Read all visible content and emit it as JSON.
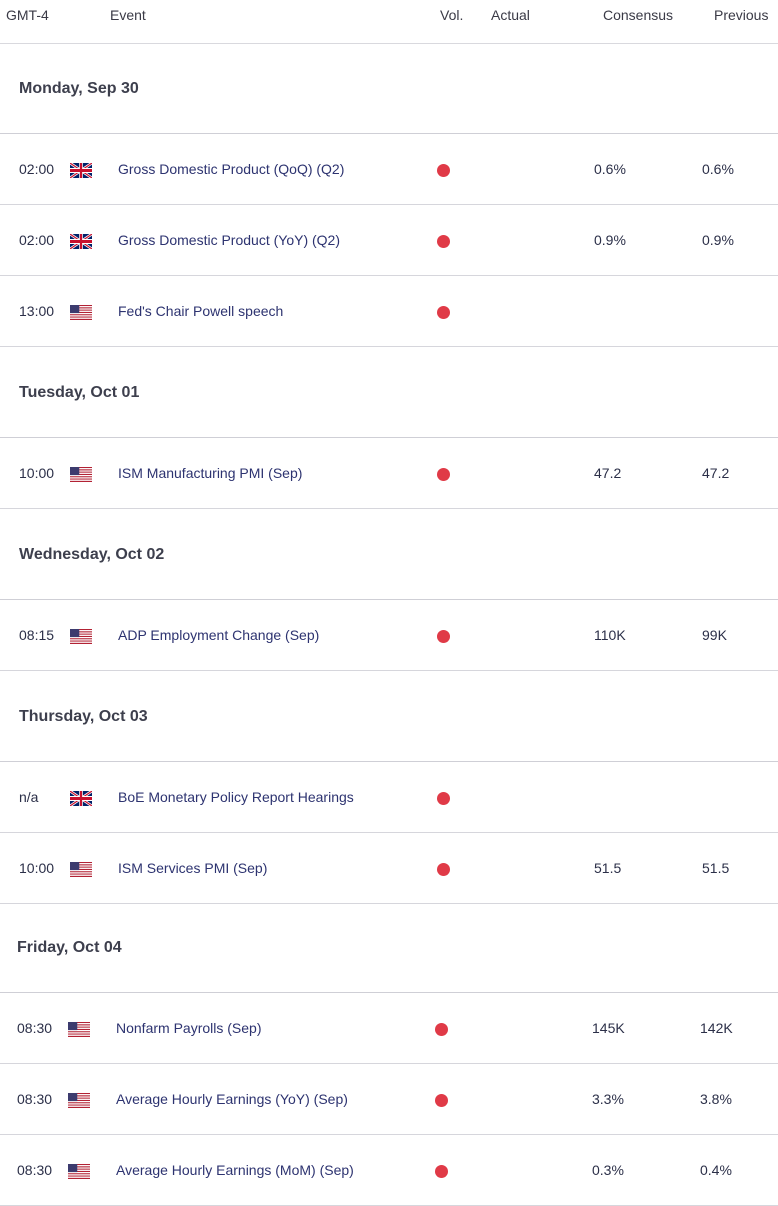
{
  "header": {
    "timezone": "GMT-4",
    "event": "Event",
    "vol": "Vol.",
    "actual": "Actual",
    "consensus": "Consensus",
    "previous": "Previous"
  },
  "colors": {
    "volatility_dot": "#e03a47",
    "event_text": "#2d3370"
  },
  "days": [
    {
      "label": "Monday, Sep 30",
      "events": [
        {
          "time": "02:00",
          "flag": "uk-flag-icon",
          "name": "Gross Domestic Product (QoQ) (Q2)",
          "actual": "",
          "consensus": "0.6%",
          "previous": "0.6%"
        },
        {
          "time": "02:00",
          "flag": "uk-flag-icon",
          "name": "Gross Domestic Product (YoY) (Q2)",
          "actual": "",
          "consensus": "0.9%",
          "previous": "0.9%"
        },
        {
          "time": "13:00",
          "flag": "us-flag-icon",
          "name": "Fed's Chair Powell speech",
          "actual": "",
          "consensus": "",
          "previous": ""
        }
      ]
    },
    {
      "label": "Tuesday, Oct 01",
      "events": [
        {
          "time": "10:00",
          "flag": "us-flag-icon",
          "name": "ISM Manufacturing PMI (Sep)",
          "actual": "",
          "consensus": "47.2",
          "previous": "47.2"
        }
      ]
    },
    {
      "label": "Wednesday, Oct 02",
      "events": [
        {
          "time": "08:15",
          "flag": "us-flag-icon",
          "name": "ADP Employment Change (Sep)",
          "actual": "",
          "consensus": "110K",
          "previous": "99K"
        }
      ]
    },
    {
      "label": "Thursday, Oct 03",
      "events": [
        {
          "time": "n/a",
          "flag": "uk-flag-icon",
          "name": "BoE Monetary Policy Report Hearings",
          "actual": "",
          "consensus": "",
          "previous": ""
        },
        {
          "time": "10:00",
          "flag": "us-flag-icon",
          "name": "ISM Services PMI (Sep)",
          "actual": "",
          "consensus": "51.5",
          "previous": "51.5"
        }
      ]
    },
    {
      "label": "Friday, Oct 04",
      "events": [
        {
          "time": "08:30",
          "flag": "us-flag-icon",
          "name": "Nonfarm Payrolls (Sep)",
          "actual": "",
          "consensus": "145K",
          "previous": "142K"
        },
        {
          "time": "08:30",
          "flag": "us-flag-icon",
          "name": "Average Hourly Earnings (YoY) (Sep)",
          "actual": "",
          "consensus": "3.3%",
          "previous": "3.8%"
        },
        {
          "time": "08:30",
          "flag": "us-flag-icon",
          "name": "Average Hourly Earnings (MoM) (Sep)",
          "actual": "",
          "consensus": "0.3%",
          "previous": "0.4%"
        }
      ]
    }
  ]
}
